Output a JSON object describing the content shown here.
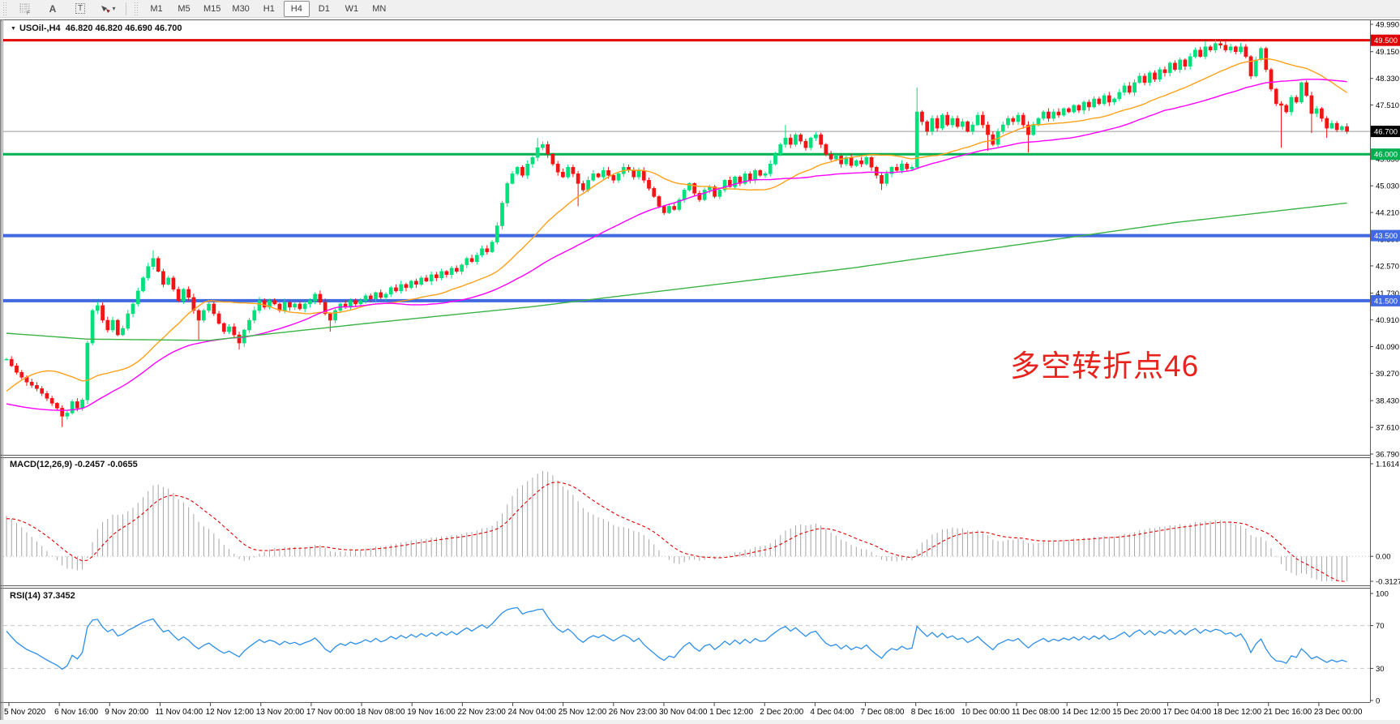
{
  "toolbar": {
    "icons": [
      {
        "name": "grid-f-icon",
        "label": "F"
      },
      {
        "name": "text-label-icon",
        "label": "A"
      },
      {
        "name": "text-box-icon",
        "label": "T"
      },
      {
        "name": "arrows-icon",
        "label": ""
      },
      {
        "name": "dropdown-caret-icon",
        "label": "▾"
      }
    ],
    "timeframes": [
      "M1",
      "M5",
      "M15",
      "M30",
      "H1",
      "H4",
      "D1",
      "W1",
      "MN"
    ],
    "active_timeframe": "H4"
  },
  "main_chart": {
    "title": {
      "dropdown_glyph": "▼",
      "symbol_period": "USOil-,H4",
      "ohlc_values": "46.820 46.820 46.690 46.700"
    },
    "annotation": {
      "text": "多空转折点46",
      "color": "#e8231d"
    },
    "y_axis_labels": [
      "49.990",
      "49.150",
      "48.330",
      "47.510",
      "46.690",
      "45.850",
      "45.030",
      "44.210",
      "43.390",
      "42.570",
      "41.730",
      "40.910",
      "40.090",
      "39.270",
      "38.430",
      "37.610",
      "36.790"
    ],
    "price_badges": [
      {
        "label": "49.500",
        "price": 49.5,
        "bg": "#e00000",
        "fg": "#ffffff",
        "line_color": "#e00000",
        "line_width": 3
      },
      {
        "label": "46.700",
        "price": 46.7,
        "bg": "#000000",
        "fg": "#ffffff",
        "line_color": "#9a9a9a",
        "line_width": 1
      },
      {
        "label": "46.000",
        "price": 46.0,
        "bg": "#00b050",
        "fg": "#ffffff",
        "line_color": "#00b050",
        "line_width": 3
      },
      {
        "label": "43.500",
        "price": 43.5,
        "bg": "#4169e1",
        "fg": "#ffffff",
        "line_color": "#4169e1",
        "line_width": 4
      },
      {
        "label": "41.500",
        "price": 41.5,
        "bg": "#4169e1",
        "fg": "#ffffff",
        "line_color": "#4169e1",
        "line_width": 4
      }
    ]
  },
  "macd_panel": {
    "label": "MACD(12,26,9)",
    "values": "-0.2457 -0.0655",
    "fast": 12,
    "slow": 26,
    "signal": 9,
    "y_axis_labels": [
      "1.1614",
      "0.00",
      "-0.3127"
    ],
    "ylim": [
      -0.3127,
      1.1614
    ],
    "bar_color": "#a6a6a6",
    "signal_color": "#e00000"
  },
  "rsi_panel": {
    "label": "RSI(14)",
    "value": "37.3452",
    "period": 14,
    "y_axis_labels": [
      "100",
      "70",
      "30",
      "0"
    ],
    "levels": [
      70,
      30
    ],
    "line_color": "#2e8fe8"
  },
  "chart_data": {
    "type": "candlestick",
    "symbol": "USOil",
    "timeframe": "H4",
    "ylim": [
      36.79,
      49.99
    ],
    "x_labels": [
      "5 Nov 2020",
      "6 Nov 16:00",
      "9 Nov 20:00",
      "11 Nov 04:00",
      "12 Nov 12:00",
      "13 Nov 20:00",
      "17 Nov 00:00",
      "18 Nov 08:00",
      "19 Nov 16:00",
      "22 Nov 23:00",
      "24 Nov 04:00",
      "25 Nov 12:00",
      "26 Nov 23:00",
      "30 Nov 04:00",
      "1 Dec 12:00",
      "2 Dec 20:00",
      "4 Dec 04:00",
      "7 Dec 08:00",
      "8 Dec 16:00",
      "10 Dec 00:00",
      "11 Dec 08:00",
      "14 Dec 12:00",
      "15 Dec 20:00",
      "17 Dec 04:00",
      "18 Dec 12:00",
      "21 Dec 16:00",
      "23 Dec 00:00"
    ],
    "closes": [
      39.7,
      39.5,
      39.3,
      39.15,
      39.0,
      38.9,
      38.8,
      38.65,
      38.5,
      38.35,
      38.2,
      37.95,
      38.05,
      38.4,
      38.2,
      38.45,
      40.2,
      41.2,
      41.35,
      40.9,
      40.6,
      40.9,
      40.45,
      40.65,
      41.1,
      41.4,
      41.8,
      42.2,
      42.55,
      42.8,
      42.4,
      42.0,
      42.2,
      41.85,
      41.5,
      41.85,
      41.6,
      41.2,
      40.9,
      41.2,
      41.4,
      41.1,
      40.8,
      40.55,
      40.7,
      40.45,
      40.2,
      40.6,
      40.9,
      41.2,
      41.5,
      41.3,
      41.5,
      41.4,
      41.2,
      41.45,
      41.3,
      41.4,
      41.25,
      41.4,
      41.5,
      41.7,
      41.45,
      41.1,
      40.9,
      41.2,
      41.4,
      41.3,
      41.5,
      41.4,
      41.5,
      41.65,
      41.55,
      41.75,
      41.6,
      41.7,
      41.9,
      41.8,
      42.0,
      41.9,
      42.1,
      42.0,
      42.2,
      42.1,
      42.3,
      42.2,
      42.4,
      42.3,
      42.5,
      42.4,
      42.6,
      42.8,
      42.7,
      42.9,
      43.1,
      43.0,
      43.3,
      43.8,
      44.5,
      45.1,
      45.4,
      45.6,
      45.35,
      45.7,
      45.9,
      46.2,
      46.3,
      46.0,
      45.7,
      45.45,
      45.3,
      45.6,
      45.4,
      45.1,
      44.9,
      45.2,
      45.4,
      45.3,
      45.5,
      45.35,
      45.2,
      45.4,
      45.6,
      45.5,
      45.3,
      45.5,
      45.2,
      44.95,
      44.7,
      44.4,
      44.2,
      44.4,
      44.3,
      44.6,
      44.9,
      45.1,
      44.8,
      44.6,
      44.9,
      45.0,
      44.7,
      44.9,
      45.2,
      45.0,
      45.3,
      45.1,
      45.4,
      45.2,
      45.5,
      45.35,
      45.4,
      45.7,
      46.0,
      46.3,
      46.5,
      46.3,
      46.6,
      46.4,
      46.2,
      46.5,
      46.6,
      46.3,
      46.0,
      45.85,
      45.95,
      45.7,
      45.9,
      45.65,
      45.8,
      45.7,
      45.9,
      45.6,
      45.35,
      45.1,
      45.4,
      45.6,
      45.5,
      45.7,
      45.55,
      45.6,
      47.3,
      47.0,
      46.7,
      47.1,
      46.8,
      47.2,
      46.9,
      47.1,
      46.85,
      47.0,
      46.7,
      46.9,
      47.2,
      46.9,
      46.6,
      46.3,
      46.7,
      46.9,
      47.1,
      47.0,
      47.2,
      46.9,
      46.6,
      46.9,
      47.1,
      47.3,
      47.1,
      47.3,
      47.2,
      47.4,
      47.3,
      47.5,
      47.35,
      47.6,
      47.45,
      47.7,
      47.55,
      47.8,
      47.6,
      47.7,
      47.9,
      48.1,
      47.9,
      48.2,
      48.4,
      48.2,
      48.5,
      48.3,
      48.6,
      48.5,
      48.8,
      48.6,
      48.9,
      48.7,
      49.0,
      49.2,
      49.0,
      49.3,
      49.2,
      49.4,
      49.35,
      49.2,
      49.3,
      49.15,
      49.3,
      49.0,
      48.4,
      48.9,
      49.25,
      48.6,
      48.0,
      47.55,
      47.5,
      47.3,
      47.75,
      47.6,
      48.2,
      47.8,
      47.25,
      47.4,
      47.1,
      46.8,
      46.95,
      46.75,
      46.85,
      46.7
    ],
    "wicks": {
      "11": [
        37.62,
        null
      ],
      "29": [
        null,
        43.05
      ],
      "38": [
        40.3,
        null
      ],
      "46": [
        40.0,
        null
      ],
      "64": [
        40.55,
        null
      ],
      "105": [
        null,
        46.5
      ],
      "113": [
        44.4,
        null
      ],
      "154": [
        null,
        46.9
      ],
      "173": [
        44.9,
        null
      ],
      "180": [
        null,
        48.05
      ],
      "194": [
        46.1,
        null
      ],
      "202": [
        46.05,
        null
      ],
      "237": [
        null,
        49.48
      ],
      "239": [
        null,
        49.52
      ],
      "241": [
        null,
        49.5
      ],
      "252": [
        46.2,
        null
      ],
      "258": [
        46.65,
        null
      ],
      "261": [
        46.5,
        null
      ]
    },
    "warmup_closes": [
      41.2,
      41.0,
      40.8,
      40.6,
      40.3,
      40.0,
      39.7,
      39.4,
      39.1,
      38.8,
      38.5,
      38.2,
      37.9,
      37.6,
      37.4,
      37.1,
      36.9,
      36.7,
      36.5,
      36.4,
      36.3,
      36.3,
      36.4,
      36.5,
      36.3,
      36.2,
      36.4,
      36.6,
      36.5,
      36.7,
      36.9,
      37.1,
      37.4,
      37.7,
      38.0,
      38.4,
      38.8,
      39.1,
      39.4,
      39.6,
      39.8,
      39.9,
      39.7,
      39.5,
      39.6,
      39.8,
      39.9,
      39.8,
      39.7,
      39.7
    ],
    "up_color": "#00e07c",
    "down_color": "#f21515",
    "moving_averages": [
      {
        "name": "ma-fast",
        "type": "sma",
        "period": 24,
        "color": "#ffa11a"
      },
      {
        "name": "ma-mid",
        "type": "sma",
        "period": 50,
        "color": "#ff00ff"
      },
      {
        "name": "ma-slow",
        "type": "waypoints",
        "color": "#3cb347",
        "points": [
          [
            0,
            40.5
          ],
          [
            16,
            40.32
          ],
          [
            40,
            40.28
          ],
          [
            71,
            40.8
          ],
          [
            103,
            41.3
          ],
          [
            135,
            41.9
          ],
          [
            167,
            42.5
          ],
          [
            199,
            43.2
          ],
          [
            231,
            43.9
          ],
          [
            265,
            44.5
          ]
        ]
      }
    ]
  }
}
